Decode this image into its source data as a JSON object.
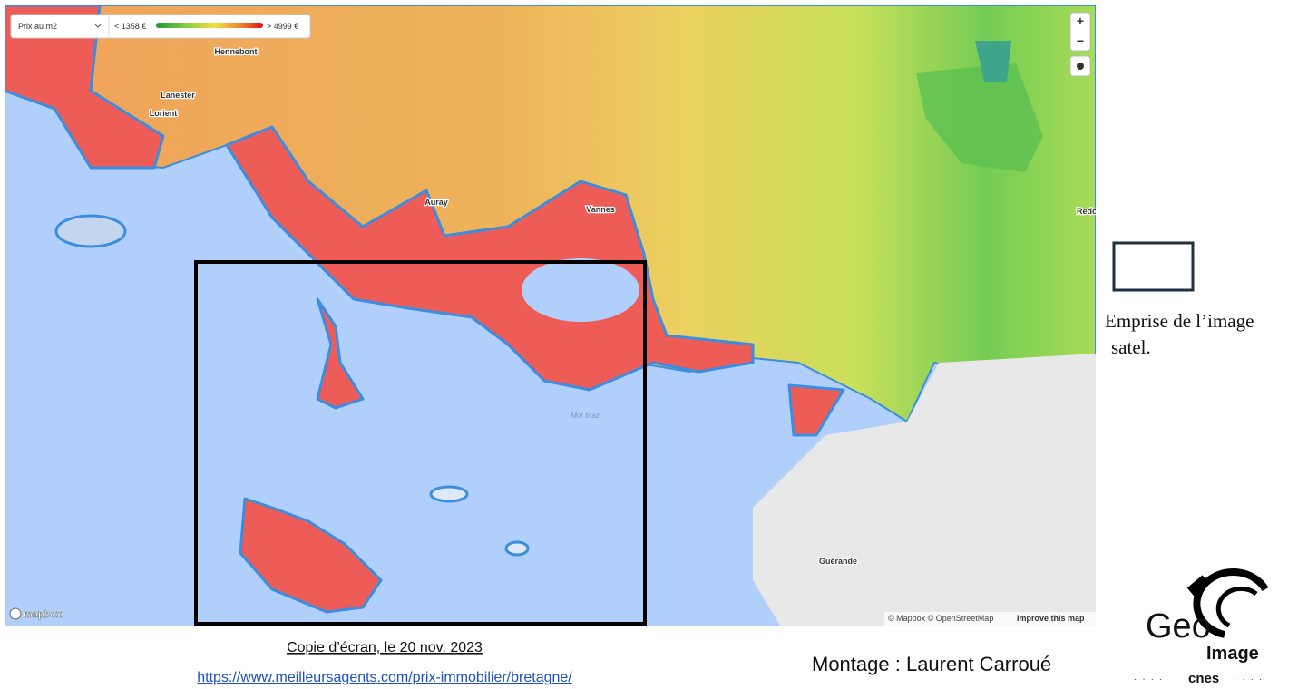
{
  "map": {
    "legend_select": "Prix au m2",
    "legend_min": "< 1358 €",
    "legend_max": "> 4999 €",
    "zoom_in": "+",
    "zoom_out": "−",
    "places": [
      "Hennebont",
      "Lanester",
      "Lorient",
      "Auray",
      "Vannes",
      "Redo",
      "Guérande"
    ],
    "sea_label": "Mor braz",
    "attribution": "© Mapbox © OpenStreetMap",
    "improve": "Improve this map",
    "mapbox_logo": "mapbox"
  },
  "side_legend": {
    "line1": "Emprise de l’image",
    "line2": "satel."
  },
  "caption": {
    "date": "Copie d’écran, le 20 nov. 2023",
    "url": "https://www.meilleursagents.com/prix-immobilier/bretagne/"
  },
  "credit": "Montage : Laurent Carroué",
  "logo": {
    "geo": "Geo",
    "image": "Image",
    "cnes": "cnes"
  }
}
